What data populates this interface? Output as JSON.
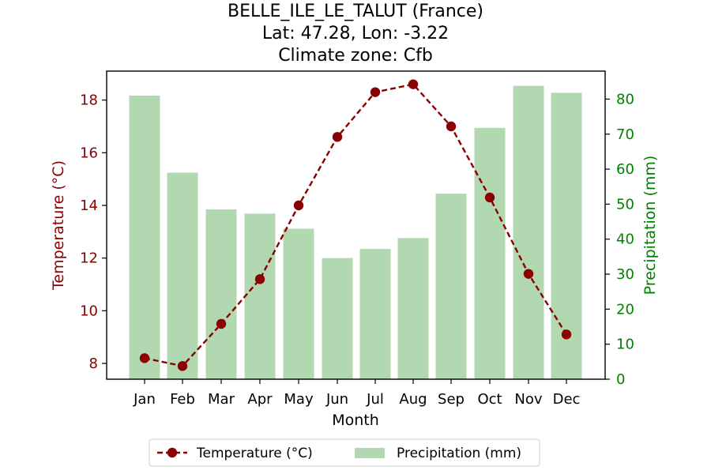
{
  "chart_data": {
    "type": "bar+line",
    "title_lines": [
      "BELLE_ILE_LE_TALUT (France)",
      "Lat: 47.28, Lon: -3.22",
      "Climate zone: Cfb"
    ],
    "xlabel": "Month",
    "categories": [
      "Jan",
      "Feb",
      "Mar",
      "Apr",
      "May",
      "Jun",
      "Jul",
      "Aug",
      "Sep",
      "Oct",
      "Nov",
      "Dec"
    ],
    "temperature": {
      "name": "Temperature (°C)",
      "ylabel": "Temperature (°C)",
      "color": "#8b0000",
      "values": [
        8.2,
        7.9,
        9.5,
        11.2,
        14.0,
        16.6,
        18.3,
        18.6,
        17.0,
        14.3,
        11.4,
        9.1
      ],
      "ylim": [
        7.4,
        19.1
      ],
      "ticks": [
        8,
        10,
        12,
        14,
        16,
        18
      ],
      "tick_labels": [
        "8",
        "10",
        "12",
        "14",
        "16",
        "18"
      ]
    },
    "precipitation": {
      "name": "Precipitation (mm)",
      "ylabel": "Precipitation (mm)",
      "color": "#b2d8b2",
      "axis_color": "#008000",
      "values": [
        81,
        59,
        48.5,
        47.3,
        43,
        34.6,
        37.2,
        40.3,
        53,
        71.8,
        83.8,
        81.8
      ],
      "ylim": [
        0,
        88
      ],
      "ticks": [
        0,
        10,
        20,
        30,
        40,
        50,
        60,
        70,
        80
      ],
      "tick_labels": [
        "0",
        "10",
        "20",
        "30",
        "40",
        "50",
        "60",
        "70",
        "80"
      ]
    },
    "legend": {
      "placement": "bottom-center",
      "entries": [
        "Temperature (°C)",
        "Precipitation (mm)"
      ]
    }
  }
}
